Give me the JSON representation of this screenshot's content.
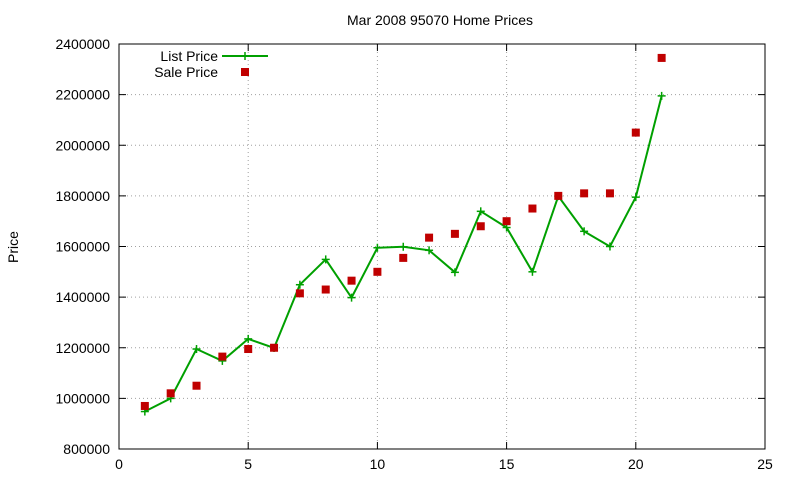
{
  "chart_data": {
    "type": "line",
    "title": "Mar 2008 95070 Home Prices",
    "xlabel": "",
    "ylabel": "Price",
    "xlim": [
      0,
      25
    ],
    "ylim": [
      800000,
      2400000
    ],
    "xticks": [
      0,
      5,
      10,
      15,
      20,
      25
    ],
    "yticks": [
      800000,
      1000000,
      1200000,
      1400000,
      1600000,
      1800000,
      2000000,
      2200000,
      2400000
    ],
    "grid": true,
    "legend_position": "top-left",
    "series": [
      {
        "name": "List Price",
        "style": "line+cross",
        "color": "#00a000",
        "x": [
          1,
          2,
          3,
          4,
          5,
          6,
          7,
          8,
          9,
          10,
          11,
          12,
          13,
          14,
          15,
          16,
          17,
          18,
          19,
          20,
          21
        ],
        "y": [
          948000,
          1000000,
          1195000,
          1148000,
          1235000,
          1199000,
          1449000,
          1549000,
          1398000,
          1595000,
          1599000,
          1585000,
          1498000,
          1739000,
          1675000,
          1500000,
          1799000,
          1660000,
          1600000,
          1795000,
          2195000
        ]
      },
      {
        "name": "Sale Price",
        "style": "square",
        "color": "#c00000",
        "x": [
          1,
          2,
          3,
          4,
          5,
          6,
          7,
          8,
          9,
          10,
          11,
          12,
          13,
          14,
          15,
          16,
          17,
          18,
          19,
          20,
          21
        ],
        "y": [
          970000,
          1020000,
          1050000,
          1165000,
          1195000,
          1200000,
          1415000,
          1430000,
          1465000,
          1500000,
          1555000,
          1635000,
          1650000,
          1680000,
          1700000,
          1750000,
          1800000,
          1810000,
          1810000,
          2050000,
          2345000
        ]
      }
    ]
  }
}
